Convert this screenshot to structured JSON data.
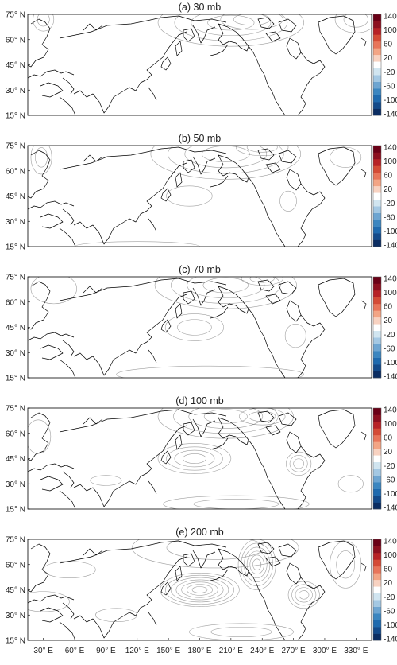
{
  "panels": [
    {
      "title": "(a) 30 mb",
      "features": [
        {
          "lon": 210,
          "lat": 70,
          "rx": 70,
          "ry": 14,
          "v": 90
        },
        {
          "lon": 230,
          "lat": 72,
          "rx": 30,
          "ry": 6,
          "v": 50
        },
        {
          "lon": 30,
          "lat": 72,
          "rx": 10,
          "ry": 7,
          "v": -40
        },
        {
          "lon": 330,
          "lat": 72,
          "rx": 20,
          "ry": 8,
          "v": -45
        }
      ]
    },
    {
      "title": "(b) 50 mb",
      "features": [
        {
          "lon": 205,
          "lat": 70,
          "rx": 72,
          "ry": 15,
          "v": 80
        },
        {
          "lon": 240,
          "lat": 74,
          "rx": 25,
          "ry": 5,
          "v": 40
        },
        {
          "lon": 28,
          "lat": 68,
          "rx": 10,
          "ry": 10,
          "v": -40
        },
        {
          "lon": 170,
          "lat": 45,
          "rx": 22,
          "ry": 6,
          "v": -28
        },
        {
          "lon": 320,
          "lat": 68,
          "rx": 15,
          "ry": 6,
          "v": -22
        },
        {
          "lon": 120,
          "lat": 15,
          "rx": 60,
          "ry": 3,
          "v": 22
        },
        {
          "lon": 265,
          "lat": 42,
          "rx": 8,
          "ry": 6,
          "v": -18
        }
      ]
    },
    {
      "title": "(c) 70 mb",
      "features": [
        {
          "lon": 205,
          "lat": 70,
          "rx": 68,
          "ry": 14,
          "v": 80
        },
        {
          "lon": 240,
          "lat": 74,
          "rx": 20,
          "ry": 4,
          "v": 40
        },
        {
          "lon": 40,
          "lat": 68,
          "rx": 22,
          "ry": 9,
          "v": -28
        },
        {
          "lon": 175,
          "lat": 45,
          "rx": 28,
          "ry": 8,
          "v": -55
        },
        {
          "lon": 272,
          "lat": 40,
          "rx": 10,
          "ry": 7,
          "v": -30
        },
        {
          "lon": 190,
          "lat": 17,
          "rx": 90,
          "ry": 5,
          "v": 28
        }
      ]
    },
    {
      "title": "(d) 100 mb",
      "features": [
        {
          "lon": 205,
          "lat": 70,
          "rx": 65,
          "ry": 13,
          "v": 80
        },
        {
          "lon": 240,
          "lat": 70,
          "rx": 22,
          "ry": 5,
          "v": 45
        },
        {
          "lon": 175,
          "lat": 45,
          "rx": 35,
          "ry": 9,
          "v": -95
        },
        {
          "lon": 275,
          "lat": 42,
          "rx": 12,
          "ry": 7,
          "v": -70
        },
        {
          "lon": 25,
          "lat": 58,
          "rx": 12,
          "ry": 10,
          "v": -22
        },
        {
          "lon": 90,
          "lat": 32,
          "rx": 15,
          "ry": 3,
          "v": -22
        },
        {
          "lon": 215,
          "lat": 18,
          "rx": 70,
          "ry": 5,
          "v": 55
        },
        {
          "lon": 325,
          "lat": 30,
          "rx": 12,
          "ry": 5,
          "v": 22
        }
      ]
    },
    {
      "title": "(e) 200 mb",
      "features": [
        {
          "lon": 195,
          "lat": 70,
          "rx": 80,
          "ry": 12,
          "v": 50
        },
        {
          "lon": 235,
          "lat": 60,
          "rx": 18,
          "ry": 15,
          "v": 120
        },
        {
          "lon": 180,
          "lat": 45,
          "rx": 38,
          "ry": 10,
          "v": -140
        },
        {
          "lon": 280,
          "lat": 42,
          "rx": 15,
          "ry": 8,
          "v": -80
        },
        {
          "lon": 55,
          "lat": 57,
          "rx": 25,
          "ry": 5,
          "v": 30
        },
        {
          "lon": 320,
          "lat": 60,
          "rx": 15,
          "ry": 14,
          "v": 45
        },
        {
          "lon": 30,
          "lat": 38,
          "rx": 25,
          "ry": 6,
          "v": -28
        },
        {
          "lon": 100,
          "lat": 30,
          "rx": 20,
          "ry": 4,
          "v": -22
        },
        {
          "lon": 220,
          "lat": 20,
          "rx": 50,
          "ry": 5,
          "v": 55
        }
      ]
    }
  ],
  "lat_labels": [
    "75° N",
    "60° N",
    "45° N",
    "30° N",
    "15° N"
  ],
  "lat_values": [
    75,
    60,
    45,
    30,
    15
  ],
  "lon_labels": [
    "30° E",
    "60° E",
    "90° E",
    "120° E",
    "150° E",
    "180° E",
    "210° E",
    "240° E",
    "270° E",
    "300° E",
    "330° E"
  ],
  "lon_values": [
    30,
    60,
    90,
    120,
    150,
    180,
    210,
    240,
    270,
    300,
    330
  ],
  "lon_range": [
    15,
    345
  ],
  "lat_range": [
    15,
    75
  ],
  "colorbar": {
    "ticks": [
      "140",
      "100",
      "60",
      "20",
      "-20",
      "-60",
      "-100",
      "-140"
    ],
    "levels": [
      -140,
      -120,
      -100,
      -80,
      -60,
      -40,
      -20,
      20,
      40,
      60,
      80,
      100,
      120,
      140
    ],
    "colors": [
      "#0b2d62",
      "#134a8a",
      "#1f6aae",
      "#3c86c0",
      "#6ea5d1",
      "#a4c8e3",
      "#d1e5f0",
      "#ffffff",
      "#f8d2c1",
      "#f3a585",
      "#e8755a",
      "#d44b36",
      "#b72226",
      "#8c0f1f",
      "#6a0016"
    ]
  }
}
